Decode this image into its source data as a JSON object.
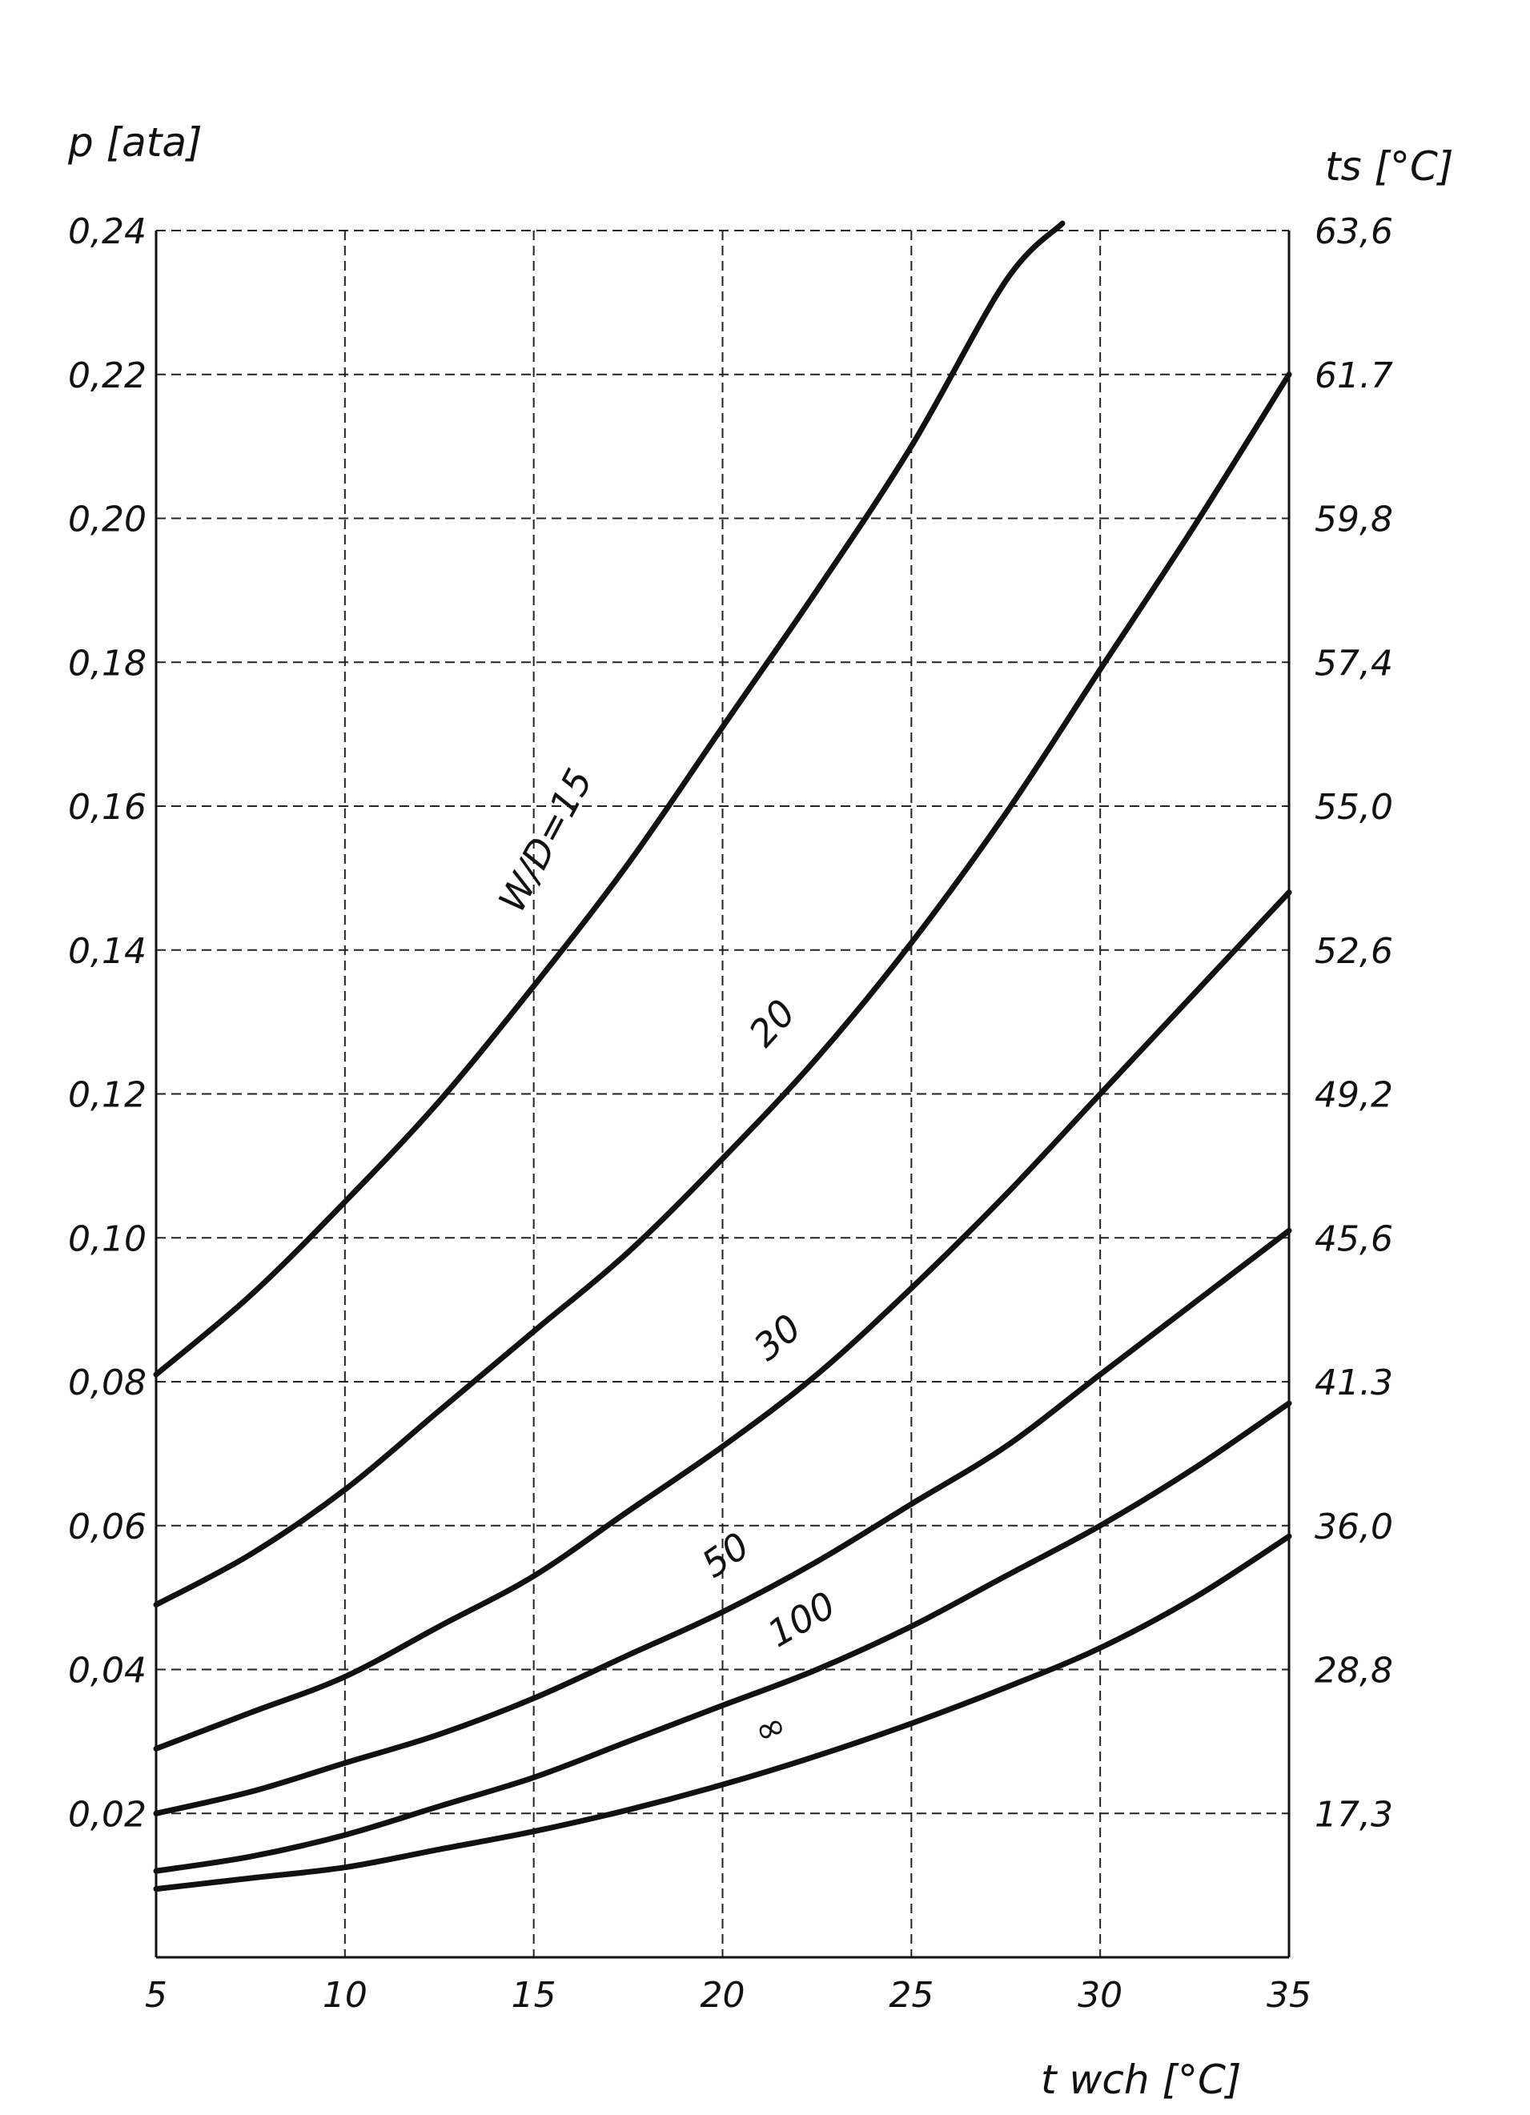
{
  "chart_data": {
    "type": "line",
    "title": "",
    "xlabel": "t wch [°C]",
    "ylabel": "p [ata]",
    "ylabel_right": "ts [°C]",
    "xlim": [
      5,
      35
    ],
    "ylim": [
      0,
      0.24
    ],
    "grid": true,
    "x_ticks": [
      "5",
      "10",
      "15",
      "20",
      "25",
      "30",
      "35"
    ],
    "x_tick_values": [
      5,
      10,
      15,
      20,
      25,
      30,
      35
    ],
    "y_ticks": [
      "0,02",
      "0,04",
      "0,06",
      "0,08",
      "0,10",
      "0,12",
      "0,14",
      "0,16",
      "0,18",
      "0,20",
      "0,22",
      "0,24"
    ],
    "y_tick_values": [
      0.02,
      0.04,
      0.06,
      0.08,
      0.1,
      0.12,
      0.14,
      0.16,
      0.18,
      0.2,
      0.22,
      0.24
    ],
    "y_right_ticks": [
      "17,3",
      "28,8",
      "36,0",
      "41.3",
      "45,6",
      "49,2",
      "52,6",
      "55,0",
      "57,4",
      "59,8",
      "61.7",
      "63,6"
    ],
    "x": [
      5,
      7.5,
      10,
      12.5,
      15,
      17.5,
      20,
      22.5,
      25,
      27.5,
      30,
      32.5,
      35
    ],
    "series": [
      {
        "name": "W/D=15",
        "label_text": "W/D=15",
        "values": [
          0.081,
          0.092,
          0.105,
          0.119,
          0.135,
          0.152,
          0.171,
          0.19,
          0.21,
          0.233,
          null,
          null,
          null
        ],
        "tail_point": [
          29.0,
          0.241
        ]
      },
      {
        "name": "20",
        "label_text": "20",
        "values": [
          0.049,
          0.056,
          0.065,
          0.076,
          0.087,
          0.098,
          0.111,
          0.125,
          0.141,
          0.159,
          0.179,
          0.199,
          0.22
        ]
      },
      {
        "name": "30",
        "label_text": "30",
        "values": [
          0.029,
          0.034,
          0.039,
          0.046,
          0.053,
          0.062,
          0.071,
          0.081,
          0.093,
          0.106,
          0.12,
          0.134,
          0.148
        ]
      },
      {
        "name": "50",
        "label_text": "50",
        "values": [
          0.02,
          0.023,
          0.027,
          0.031,
          0.036,
          0.042,
          0.048,
          0.055,
          0.063,
          0.071,
          0.081,
          0.091,
          0.101
        ]
      },
      {
        "name": "100",
        "label_text": "100",
        "values": [
          0.012,
          0.014,
          0.017,
          0.021,
          0.025,
          0.03,
          0.035,
          0.04,
          0.046,
          0.053,
          0.06,
          0.068,
          0.077
        ]
      },
      {
        "name": "∞",
        "label_text": "∞",
        "values": [
          0.0095,
          0.011,
          0.0125,
          0.015,
          0.0175,
          0.0205,
          0.024,
          0.028,
          0.0325,
          0.0375,
          0.043,
          0.05,
          0.0585
        ]
      }
    ]
  }
}
